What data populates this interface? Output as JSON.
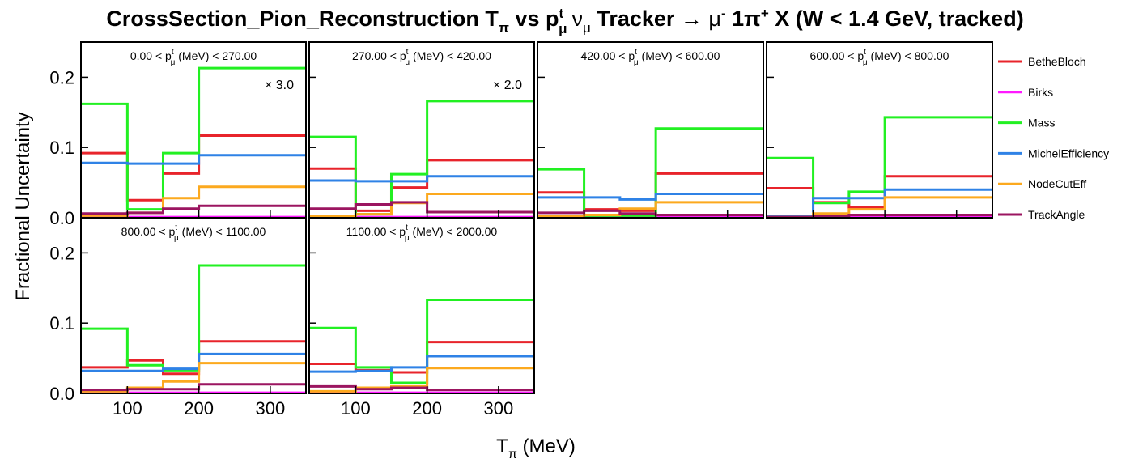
{
  "chart_data": {
    "type": "line",
    "title_parts": {
      "lead": "CrossSection_Pion_Reconstruction T",
      "t_sub": "π",
      "vs": " vs p",
      "p_sup": "t",
      "p_sub": "μ",
      "nu": "ν",
      "nu_sub": "μ",
      "tracker": " Tracker ",
      "arrow": "→",
      "mu": " μ",
      "mu_sup": "-",
      "pion": " 1π",
      "pion_sup": "+",
      "tail": " X  (W < 1.4 GeV, tracked)"
    },
    "xlabel_parts": {
      "main": "T",
      "sub": "π",
      "unit": " (MeV)"
    },
    "ylabel": "Fractional Uncertainty",
    "xlim": [
      35,
      350
    ],
    "ylim": [
      0,
      0.25
    ],
    "x_edges": [
      35,
      100,
      150,
      200,
      350
    ],
    "xticks": [
      100,
      200,
      300
    ],
    "xtick_labels": [
      "100",
      "200",
      "300"
    ],
    "yticks": [
      0,
      0.1,
      0.2
    ],
    "ytick_labels": [
      "0.0",
      "0.1",
      "0.2"
    ],
    "series_names": [
      "BetheBloch",
      "Birks",
      "Mass",
      "MichelEfficiency",
      "NodeCutEff",
      "TrackAngle"
    ],
    "colors": [
      "#e8242b",
      "#ff19ff",
      "#22f022",
      "#2f82e6",
      "#fca91e",
      "#9b1560"
    ],
    "legend_position": "right",
    "panels": [
      {
        "label_left": "0.00 < p",
        "label_right": " (MeV) < 270.00",
        "scale_text": "× 3.0",
        "series": [
          {
            "name": "BetheBloch",
            "values": [
              0.092,
              0.025,
              0.063,
              0.117
            ]
          },
          {
            "name": "Birks",
            "values": [
              0.001,
              0.001,
              0.001,
              0.001
            ]
          },
          {
            "name": "Mass",
            "values": [
              0.162,
              0.012,
              0.092,
              0.213
            ]
          },
          {
            "name": "MichelEfficiency",
            "values": [
              0.078,
              0.077,
              0.077,
              0.089
            ]
          },
          {
            "name": "NodeCutEff",
            "values": [
              0.003,
              0.007,
              0.028,
              0.044
            ]
          },
          {
            "name": "TrackAngle",
            "values": [
              0.006,
              0.007,
              0.013,
              0.017
            ]
          }
        ]
      },
      {
        "label_left": "270.00 < p",
        "label_right": " (MeV) < 420.00",
        "scale_text": "× 2.0",
        "series": [
          {
            "name": "BetheBloch",
            "values": [
              0.07,
              0.01,
              0.043,
              0.082
            ]
          },
          {
            "name": "Birks",
            "values": [
              0.001,
              0.001,
              0.001,
              0.001
            ]
          },
          {
            "name": "Mass",
            "values": [
              0.115,
              0.005,
              0.062,
              0.166
            ]
          },
          {
            "name": "MichelEfficiency",
            "values": [
              0.053,
              0.052,
              0.052,
              0.059
            ]
          },
          {
            "name": "NodeCutEff",
            "values": [
              0.002,
              0.005,
              0.021,
              0.034
            ]
          },
          {
            "name": "TrackAngle",
            "values": [
              0.013,
              0.019,
              0.022,
              0.008
            ]
          }
        ]
      },
      {
        "label_left": "420.00 < p",
        "label_right": " (MeV) < 600.00",
        "scale_text": "",
        "series": [
          {
            "name": "BetheBloch",
            "values": [
              0.036,
              0.012,
              0.01,
              0.063
            ]
          },
          {
            "name": "Birks",
            "values": [
              0.001,
              0.001,
              0.001,
              0.001
            ]
          },
          {
            "name": "Mass",
            "values": [
              0.069,
              0.003,
              0.003,
              0.127
            ]
          },
          {
            "name": "MichelEfficiency",
            "values": [
              0.029,
              0.029,
              0.026,
              0.034
            ]
          },
          {
            "name": "NodeCutEff",
            "values": [
              0.002,
              0.004,
              0.013,
              0.022
            ]
          },
          {
            "name": "TrackAngle",
            "values": [
              0.007,
              0.01,
              0.006,
              0.004
            ]
          }
        ]
      },
      {
        "label_left": "600.00 < p",
        "label_right": " (MeV) < 800.00",
        "scale_text": "",
        "series": [
          {
            "name": "BetheBloch",
            "values": [
              0.042,
              0.022,
              0.015,
              0.059
            ]
          },
          {
            "name": "Birks",
            "values": [
              0.001,
              0.001,
              0.001,
              0.001
            ]
          },
          {
            "name": "Mass",
            "values": [
              0.085,
              0.021,
              0.037,
              0.143
            ]
          },
          {
            "name": "MichelEfficiency",
            "values": [
              0.002,
              0.028,
              0.028,
              0.04
            ]
          },
          {
            "name": "NodeCutEff",
            "values": [
              0.001,
              0.006,
              0.012,
              0.029
            ]
          },
          {
            "name": "TrackAngle",
            "values": [
              0.001,
              0.002,
              0.004,
              0.004
            ]
          }
        ]
      },
      {
        "label_left": "800.00 < p",
        "label_right": " (MeV) < 1100.00",
        "scale_text": "",
        "series": [
          {
            "name": "BetheBloch",
            "values": [
              0.037,
              0.047,
              0.028,
              0.074
            ]
          },
          {
            "name": "Birks",
            "values": [
              0.001,
              0.001,
              0.001,
              0.001
            ]
          },
          {
            "name": "Mass",
            "values": [
              0.092,
              0.04,
              0.033,
              0.182
            ]
          },
          {
            "name": "MichelEfficiency",
            "values": [
              0.032,
              0.032,
              0.035,
              0.056
            ]
          },
          {
            "name": "NodeCutEff",
            "values": [
              0.003,
              0.008,
              0.017,
              0.043
            ]
          },
          {
            "name": "TrackAngle",
            "values": [
              0.005,
              0.006,
              0.006,
              0.013
            ]
          }
        ]
      },
      {
        "label_left": "1100.00 < p",
        "label_right": " (MeV) < 2000.00",
        "scale_text": "",
        "series": [
          {
            "name": "BetheBloch",
            "values": [
              0.042,
              0.033,
              0.03,
              0.073
            ]
          },
          {
            "name": "Birks",
            "values": [
              0.001,
              0.001,
              0.001,
              0.001
            ]
          },
          {
            "name": "Mass",
            "values": [
              0.093,
              0.037,
              0.015,
              0.133
            ]
          },
          {
            "name": "MichelEfficiency",
            "values": [
              0.031,
              0.032,
              0.037,
              0.053
            ]
          },
          {
            "name": "NodeCutEff",
            "values": [
              0.003,
              0.008,
              0.01,
              0.036
            ]
          },
          {
            "name": "TrackAngle",
            "values": [
              0.01,
              0.006,
              0.008,
              0.005
            ]
          }
        ]
      }
    ]
  }
}
